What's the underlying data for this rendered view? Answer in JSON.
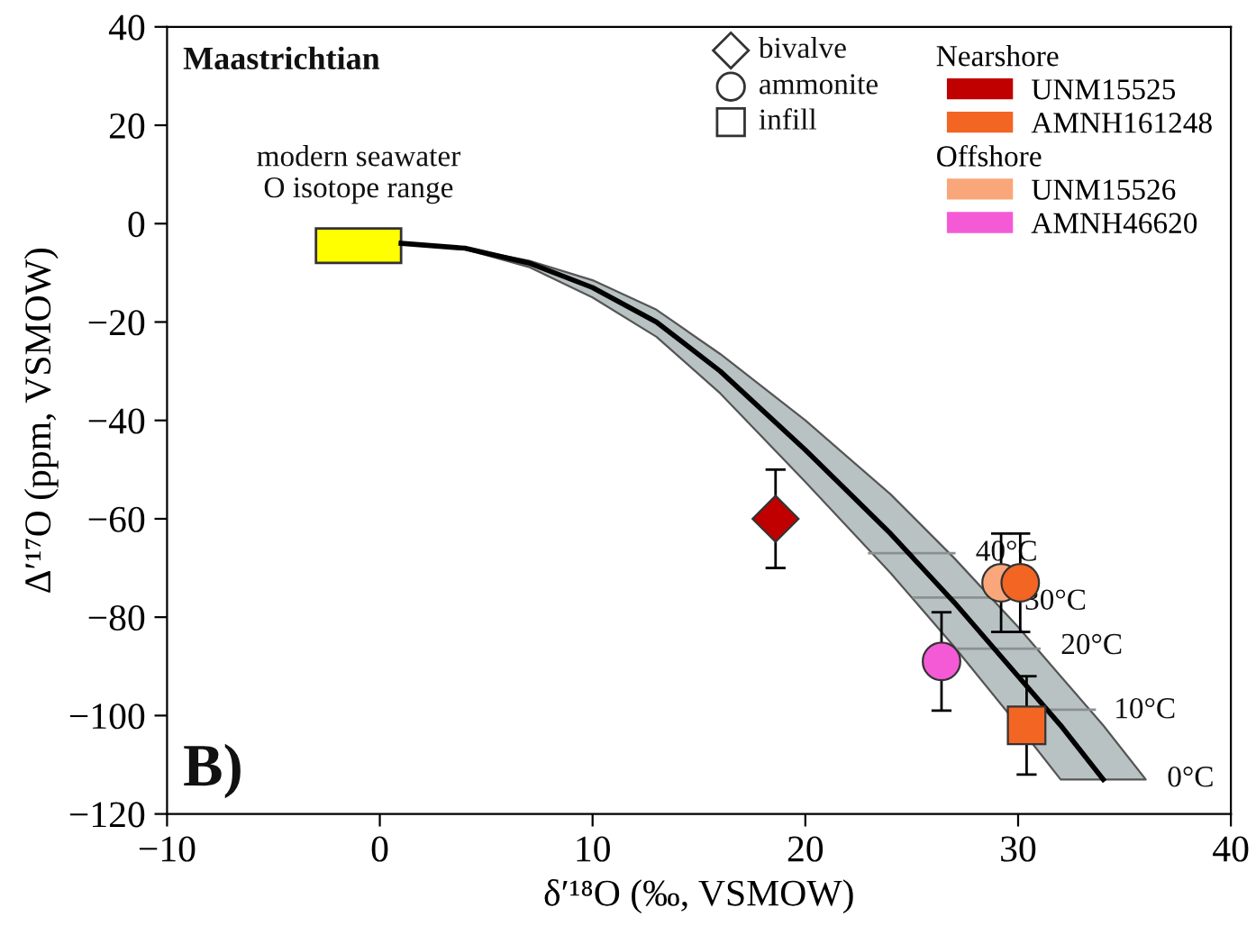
{
  "chart_data": {
    "type": "scatter",
    "xlabel": "δ′¹⁸O (‰, VSMOW)",
    "ylabel": "Δ′¹⁷O (ppm, VSMOW)",
    "xlim": [
      -10,
      40
    ],
    "xticks": [
      -10,
      0,
      10,
      20,
      30,
      40
    ],
    "ylim": [
      -120,
      40
    ],
    "yticks": [
      -120,
      -100,
      -80,
      -60,
      -40,
      -20,
      0,
      20,
      40
    ],
    "grid": false,
    "legend": "top right",
    "series": [
      {
        "type": "area",
        "color": "#ffff00",
        "x": [
          -3,
          1,
          1,
          -3
        ],
        "values": [
          -1,
          -1,
          -8,
          -8
        ]
      },
      {
        "type": "line",
        "color": "#000000",
        "x": [
          1,
          4,
          7,
          10,
          13,
          16,
          20,
          24,
          27,
          30,
          32,
          34,
          36
        ],
        "values": [
          -4,
          -5,
          -8,
          -13,
          -20,
          -30,
          -46,
          -63,
          -77,
          -92,
          -102,
          -113,
          null
        ],
        "lower": [
          -4,
          -5.2,
          -8.8,
          -15,
          -23,
          -34.5,
          -52.5,
          -71,
          -86,
          -102,
          -113,
          -113,
          -113
        ],
        "upper": [
          -4,
          -5,
          -7.5,
          -11.5,
          -17.5,
          -26.5,
          -40,
          -55,
          -68,
          -82,
          -92,
          -102,
          -113
        ]
      },
      {
        "type": "line",
        "color": "#8a9090",
        "x": [
          23,
          27
        ],
        "values": [
          -67,
          -67
        ]
      },
      {
        "type": "line",
        "color": "#8a9090",
        "x": [
          25.1,
          29.3
        ],
        "values": [
          -76,
          -76
        ]
      },
      {
        "type": "line",
        "color": "#8a9090",
        "x": [
          27,
          31
        ],
        "values": [
          -86.4,
          -86.4
        ]
      },
      {
        "type": "line",
        "color": "#8a9090",
        "x": [
          29.6,
          33.6
        ],
        "values": [
          -98.8,
          -98.8
        ]
      },
      {
        "name": "UNM15525",
        "color": "#c00000",
        "marker": "diamond",
        "x": [
          18.6
        ],
        "values": [
          -60
        ],
        "errors": [
          10
        ]
      },
      {
        "name": "AMNH161248",
        "color": "#f26522",
        "marker": "circle",
        "x": [
          30.1
        ],
        "values": [
          -73
        ],
        "errors": [
          10
        ]
      },
      {
        "color": "#f26522",
        "marker": "square",
        "x": [
          30.4
        ],
        "values": [
          -102
        ],
        "errors": [
          10
        ]
      },
      {
        "name": "UNM15526",
        "color": "#f9a77a",
        "marker": "circle",
        "x": [
          29.2
        ],
        "values": [
          -73
        ],
        "errors": [
          10
        ]
      },
      {
        "name": "AMNH46620",
        "color": "#f55ad6",
        "marker": "circle",
        "x": [
          26.4
        ],
        "values": [
          -89
        ],
        "errors": [
          10
        ]
      }
    ],
    "annotations": [
      "Maastrichtian",
      "B)",
      "modern seawater\nO isotope range",
      "40°C",
      "30°C",
      "20°C",
      "10°C",
      "0°C",
      "bivalve",
      "ammonite",
      "infill",
      "Nearshore",
      "Offshore"
    ]
  }
}
